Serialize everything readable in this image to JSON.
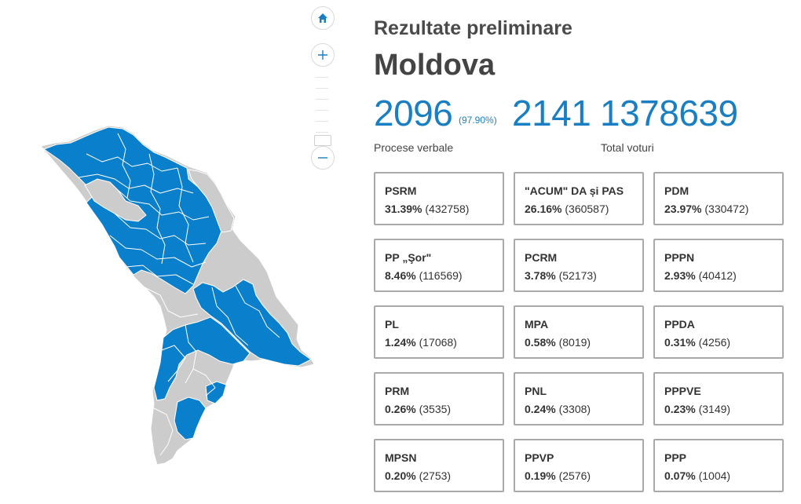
{
  "header": {
    "subtitle": "Rezultate preliminare",
    "region": "Moldova"
  },
  "stats": {
    "protocols_counted": "2096",
    "protocols_percent": "(97.90%)",
    "protocols_total": "2141",
    "total_votes": "1378639",
    "label_protocols": "Procese verbale",
    "label_votes": "Total voturi"
  },
  "map": {
    "colors": {
      "won": "#0a7fcb",
      "other": "#cccccc",
      "border": "#ffffff"
    },
    "controls": {
      "home_icon": "home-icon",
      "zoom_in_icon": "plus-icon",
      "zoom_out_icon": "minus-icon"
    }
  },
  "parties": [
    {
      "name": "PSRM",
      "percent": "31.39%",
      "votes": "(432758)"
    },
    {
      "name": "\"ACUM\" DA și PAS",
      "percent": "26.16%",
      "votes": "(360587)"
    },
    {
      "name": "PDM",
      "percent": "23.97%",
      "votes": "(330472)"
    },
    {
      "name": "PP „Şor\"",
      "percent": "8.46%",
      "votes": "(116569)"
    },
    {
      "name": "PCRM",
      "percent": "3.78%",
      "votes": "(52173)"
    },
    {
      "name": "PPPN",
      "percent": "2.93%",
      "votes": "(40412)"
    },
    {
      "name": "PL",
      "percent": "1.24%",
      "votes": "(17068)"
    },
    {
      "name": "MPA",
      "percent": "0.58%",
      "votes": "(8019)"
    },
    {
      "name": "PPDA",
      "percent": "0.31%",
      "votes": "(4256)"
    },
    {
      "name": "PRM",
      "percent": "0.26%",
      "votes": "(3535)"
    },
    {
      "name": "PNL",
      "percent": "0.24%",
      "votes": "(3308)"
    },
    {
      "name": "PPPVE",
      "percent": "0.23%",
      "votes": "(3149)"
    },
    {
      "name": "MPSN",
      "percent": "0.20%",
      "votes": "(2753)"
    },
    {
      "name": "PPVP",
      "percent": "0.19%",
      "votes": "(2576)"
    },
    {
      "name": "PPP",
      "percent": "0.07%",
      "votes": "(1004)"
    }
  ]
}
